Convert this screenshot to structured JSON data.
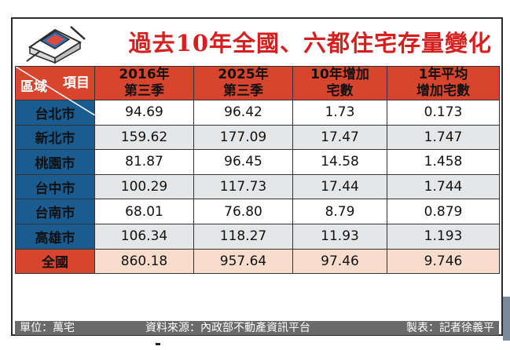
{
  "title": "過去10年全國、六都住宅存量變化",
  "header": {
    "corner_top": "項目",
    "corner_bottom": "區域",
    "columns": [
      {
        "line1": "2016年",
        "line2": "第三季"
      },
      {
        "line1": "2025年",
        "line2": "第三季"
      },
      {
        "line1": "10年增加",
        "line2": "宅數"
      },
      {
        "line1": "1年平均",
        "line2": "增加宅數"
      }
    ]
  },
  "rows": [
    {
      "region": "台北市",
      "values": [
        "94.69",
        "96.42",
        "1.73",
        "0.173"
      ]
    },
    {
      "region": "新北市",
      "values": [
        "159.62",
        "177.09",
        "17.47",
        "1.747"
      ]
    },
    {
      "region": "桃園市",
      "values": [
        "81.87",
        "96.45",
        "14.58",
        "1.458"
      ]
    },
    {
      "region": "台中市",
      "values": [
        "100.29",
        "117.73",
        "17.44",
        "1.744"
      ]
    },
    {
      "region": "台南市",
      "values": [
        "68.01",
        "76.80",
        "8.79",
        "0.879"
      ]
    },
    {
      "region": "高雄市",
      "values": [
        "106.34",
        "118.27",
        "11.93",
        "1.193"
      ]
    },
    {
      "region": "全國",
      "values": [
        "860.18",
        "957.64",
        "97.46",
        "9.746"
      ]
    }
  ],
  "footer": {
    "unit": "單位：萬宅",
    "source": "資料來源：內政部不動產資訊平台",
    "credit": "製表：記者徐義平"
  },
  "colors": {
    "title": "#d62020",
    "header_bg": "#d8452f",
    "region_bg": "#1a5c8f",
    "total_bg": "#f9ddcc",
    "alt_row_bg": "#e4e6e8",
    "footer_bg": "#6a6a6a"
  },
  "icons": [
    "house-illustration-icon"
  ]
}
